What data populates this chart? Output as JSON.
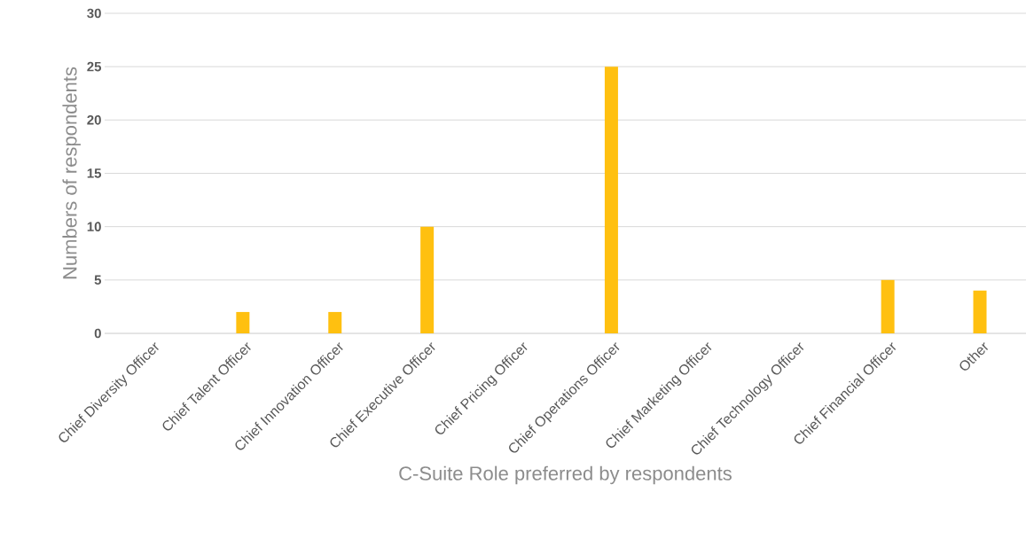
{
  "chart_data": {
    "type": "bar",
    "xlabel": "C-Suite Role preferred by respondents",
    "ylabel": "Numbers of respondents",
    "categories": [
      "Chief Diversity Officer",
      "Chief Talent Officer",
      "Chief Innovation Officer",
      "Chief Executive Officer",
      "Chief Pricing Officer",
      "Chief Operations Officer",
      "Chief Marketing Officer",
      "Chief Technology Officer",
      "Chief Financial Officer",
      "Other"
    ],
    "values": [
      0,
      2,
      2,
      10,
      0,
      25,
      0,
      0,
      5,
      4
    ],
    "color": "#ffc010",
    "ylim": [
      0,
      30
    ],
    "yticks": [
      0,
      5,
      10,
      15,
      20,
      25,
      30
    ],
    "grid": "y"
  }
}
